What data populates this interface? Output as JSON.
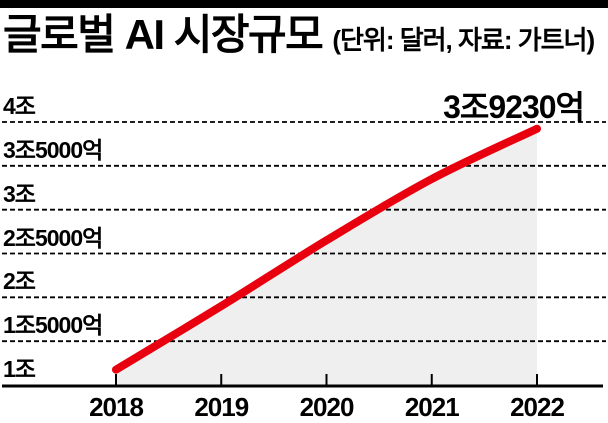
{
  "top_bar": {
    "color": "#000000"
  },
  "header": {
    "title": "글로벌 AI 시장규모",
    "unit_note": "(단위: 달러, 자료: 가트너)"
  },
  "chart_data": {
    "type": "area",
    "title": "글로벌 AI 시장규모",
    "unit": "달러",
    "source": "가트너",
    "categories": [
      "2018",
      "2019",
      "2020",
      "2021",
      "2022"
    ],
    "series": [
      {
        "name": "글로벌 AI 시장규모",
        "values_trillion_usd": [
          1.175,
          1.9,
          2.65,
          3.35,
          3.923
        ]
      }
    ],
    "annotation": {
      "text": "3조9230억",
      "category": "2022",
      "value_trillion_usd": 3.923
    },
    "y_ticks": [
      {
        "label": "4조",
        "value": 4
      },
      {
        "label": "3조5000억",
        "value": 3.5
      },
      {
        "label": "3조",
        "value": 3
      },
      {
        "label": "2조5000억",
        "value": 2.5
      },
      {
        "label": "2조",
        "value": 2
      },
      {
        "label": "1조5000억",
        "value": 1.5
      },
      {
        "label": "1조",
        "value": 1
      }
    ],
    "ylim": [
      1,
      4
    ],
    "grid": "dashed-horizontal",
    "legend": "none",
    "colors": {
      "line": "#e8000e",
      "fill": "#efefef",
      "grid": "#000000",
      "axis": "#000000",
      "text": "#000000",
      "background": "#ffffff"
    }
  }
}
